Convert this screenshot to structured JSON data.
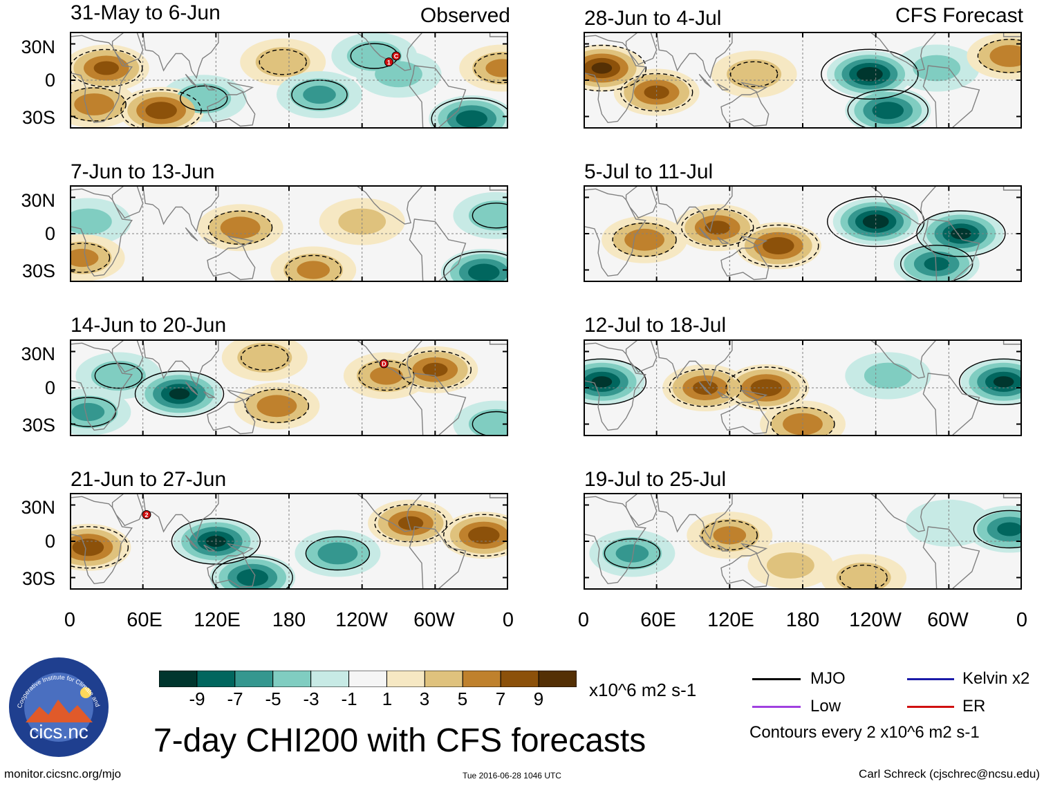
{
  "header": {
    "observed_label": "Observed",
    "forecast_label": "CFS Forecast"
  },
  "colors": {
    "levels": [
      "#00362e",
      "#01665e",
      "#35978f",
      "#80cdc1",
      "#c7eae5",
      "#f5f5f5",
      "#f6e8c3",
      "#dfc27d",
      "#bf812d",
      "#8c510a",
      "#543005"
    ],
    "land": "#808080",
    "contour": "#000000",
    "grid": "#808080"
  },
  "chart_data": {
    "type": "heatmap",
    "title": "7-day CHI200 with CFS forecasts",
    "variable": "CHI200",
    "units": "x10^6 m2 s-1",
    "x_ticks": [
      "0",
      "60E",
      "120E",
      "180",
      "120W",
      "60W",
      "0"
    ],
    "y_ticks": [
      "30N",
      "0",
      "30S"
    ],
    "lon_range": [
      0,
      360
    ],
    "lat_range": [
      -40,
      40
    ],
    "colorbar": {
      "tick_labels": [
        "-9",
        "-7",
        "-5",
        "-3",
        "-1",
        "1",
        "3",
        "5",
        "7",
        "9"
      ],
      "bounds": [
        -9,
        -7,
        -5,
        -3,
        -1,
        1,
        3,
        5,
        7,
        9
      ]
    },
    "panels": [
      {
        "id": "obs-1",
        "column": "observed",
        "period": "31-May to 6-Jun",
        "anomalies": [
          {
            "lon": 30,
            "lat": 10,
            "value": 7
          },
          {
            "lon": 75,
            "lat": -25,
            "value": 8
          },
          {
            "lon": 20,
            "lat": -20,
            "value": 6
          },
          {
            "lon": 110,
            "lat": -15,
            "value": -4
          },
          {
            "lon": 175,
            "lat": 15,
            "value": 4
          },
          {
            "lon": 205,
            "lat": -12,
            "value": -5
          },
          {
            "lon": 250,
            "lat": 20,
            "value": -4
          },
          {
            "lon": 270,
            "lat": 5,
            "value": -3
          },
          {
            "lon": 330,
            "lat": -32,
            "value": -8
          },
          {
            "lon": 355,
            "lat": 10,
            "value": 5
          }
        ],
        "markers": [
          {
            "lon": 262,
            "lat": 15,
            "label": "1"
          },
          {
            "lon": 268,
            "lat": 20,
            "label": "C"
          }
        ]
      },
      {
        "id": "obs-2",
        "column": "observed",
        "period": "7-Jun to 13-Jun",
        "anomalies": [
          {
            "lon": 15,
            "lat": 10,
            "value": -3
          },
          {
            "lon": 10,
            "lat": -20,
            "value": 5
          },
          {
            "lon": 140,
            "lat": 5,
            "value": 6
          },
          {
            "lon": 200,
            "lat": -30,
            "value": 5
          },
          {
            "lon": 240,
            "lat": 10,
            "value": 3
          },
          {
            "lon": 340,
            "lat": -32,
            "value": -8
          },
          {
            "lon": 350,
            "lat": 15,
            "value": -4
          }
        ],
        "markers": []
      },
      {
        "id": "obs-3",
        "column": "observed",
        "period": "14-Jun to 20-Jun",
        "anomalies": [
          {
            "lon": 90,
            "lat": -5,
            "value": -9
          },
          {
            "lon": 40,
            "lat": 10,
            "value": -4
          },
          {
            "lon": 15,
            "lat": -20,
            "value": -5
          },
          {
            "lon": 160,
            "lat": 25,
            "value": 4
          },
          {
            "lon": 170,
            "lat": -15,
            "value": 6
          },
          {
            "lon": 260,
            "lat": 10,
            "value": 5
          },
          {
            "lon": 300,
            "lat": 15,
            "value": 7
          },
          {
            "lon": 350,
            "lat": -30,
            "value": -4
          }
        ],
        "markers": [
          {
            "lon": 258,
            "lat": 20,
            "label": "D"
          }
        ]
      },
      {
        "id": "obs-4",
        "column": "observed",
        "period": "21-Jun to 27-Jun",
        "anomalies": [
          {
            "lon": 15,
            "lat": -5,
            "value": 8
          },
          {
            "lon": 120,
            "lat": 0,
            "value": -9
          },
          {
            "lon": 150,
            "lat": -30,
            "value": -8
          },
          {
            "lon": 220,
            "lat": -10,
            "value": -6
          },
          {
            "lon": 280,
            "lat": 15,
            "value": 7
          },
          {
            "lon": 340,
            "lat": 5,
            "value": 8
          }
        ],
        "markers": [
          {
            "lon": 63,
            "lat": 22,
            "label": "2"
          }
        ]
      },
      {
        "id": "fcst-1",
        "column": "forecast",
        "period": "28-Jun to 4-Jul",
        "anomalies": [
          {
            "lon": 15,
            "lat": 10,
            "value": 9
          },
          {
            "lon": 60,
            "lat": -10,
            "value": 7
          },
          {
            "lon": 140,
            "lat": 5,
            "value": 4
          },
          {
            "lon": 235,
            "lat": 5,
            "value": -10
          },
          {
            "lon": 250,
            "lat": -25,
            "value": -8
          },
          {
            "lon": 290,
            "lat": 10,
            "value": -3
          },
          {
            "lon": 350,
            "lat": 20,
            "value": 6
          }
        ],
        "markers": []
      },
      {
        "id": "fcst-2",
        "column": "forecast",
        "period": "5-Jul to 11-Jul",
        "anomalies": [
          {
            "lon": 50,
            "lat": -5,
            "value": 6
          },
          {
            "lon": 110,
            "lat": 5,
            "value": 7
          },
          {
            "lon": 160,
            "lat": -10,
            "value": 8
          },
          {
            "lon": 240,
            "lat": 10,
            "value": -10
          },
          {
            "lon": 310,
            "lat": 0,
            "value": -9
          },
          {
            "lon": 290,
            "lat": -25,
            "value": -7
          }
        ],
        "markers": []
      },
      {
        "id": "fcst-3",
        "column": "forecast",
        "period": "12-Jul to 18-Jul",
        "anomalies": [
          {
            "lon": 15,
            "lat": 5,
            "value": -9
          },
          {
            "lon": 100,
            "lat": 0,
            "value": 7
          },
          {
            "lon": 150,
            "lat": 0,
            "value": 8
          },
          {
            "lon": 180,
            "lat": -30,
            "value": 6
          },
          {
            "lon": 250,
            "lat": 10,
            "value": -3
          },
          {
            "lon": 345,
            "lat": 5,
            "value": -9
          }
        ],
        "markers": []
      },
      {
        "id": "fcst-4",
        "column": "forecast",
        "period": "19-Jul to 25-Jul",
        "anomalies": [
          {
            "lon": 40,
            "lat": -10,
            "value": -5
          },
          {
            "lon": 120,
            "lat": 5,
            "value": 5
          },
          {
            "lon": 170,
            "lat": -20,
            "value": 3
          },
          {
            "lon": 230,
            "lat": -30,
            "value": 4
          },
          {
            "lon": 300,
            "lat": 15,
            "value": -2
          },
          {
            "lon": 350,
            "lat": 10,
            "value": -7
          }
        ],
        "markers": []
      }
    ]
  },
  "colorbar_units": "x10^6 m2 s-1",
  "legend": {
    "mjo": "MJO",
    "kelvin": "Kelvin x2",
    "low": "Low",
    "er": "ER",
    "mjo_color": "#000000",
    "kelvin_color": "#1a1aa8",
    "low_color": "#a040e0",
    "er_color": "#d01010",
    "contours_note": "Contours every 2 x10^6 m2 s-1"
  },
  "logo": {
    "arc_text": "Cooperative Institute for Climate and Satellites",
    "name": "cics.nc"
  },
  "footer": {
    "url": "monitor.cicsnc.org/mjo",
    "timestamp": "Tue 2016-06-28 1046 UTC",
    "author": "Carl Schreck (cjschrec@ncsu.edu)"
  }
}
